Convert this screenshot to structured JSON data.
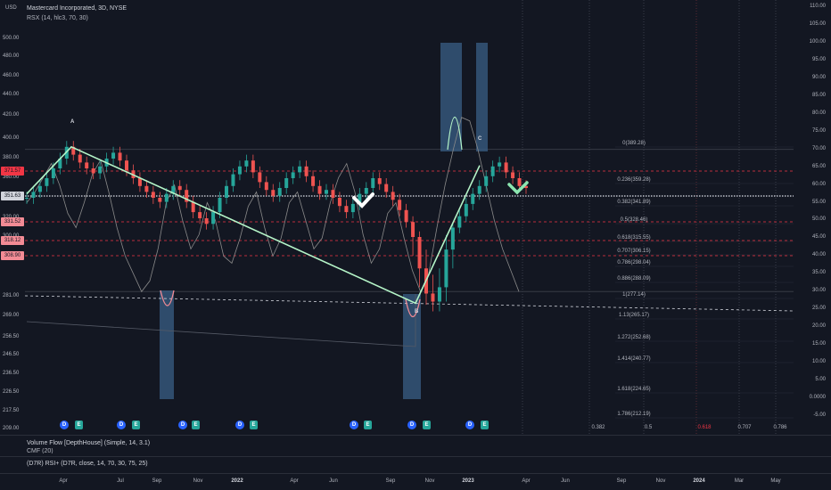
{
  "header": {
    "title": "Mastercard Incorporated, 3D, NYSE",
    "indicator": "RSX (14, hlc3, 70, 30)",
    "currency": "USD"
  },
  "lower_panes": {
    "pane1_label": "Volume Flow [DepthHouse] (Simple, 14, 3.1)",
    "pane1_sublabel": "CMF (20)",
    "pane2_label": "(D7R) RSI+ (D7R, close, 14, 70, 30, 75, 25)"
  },
  "colors": {
    "background": "#131722",
    "wave_line": "#b5f5c8",
    "rsx_line": "#8a8a8a",
    "highlight_box": "#3a5f86",
    "red_level": "#f23645",
    "checkmark": "#ffffff",
    "checkmark_green": "#8ce6b0"
  },
  "price_axis": {
    "ticks": [
      "500.00",
      "480.00",
      "460.00",
      "440.00",
      "420.00",
      "400.00",
      "380.00",
      "360.00",
      "340.00",
      "320.00",
      "300.00",
      "281.00",
      "269.00",
      "256.50",
      "246.50",
      "236.50",
      "226.50",
      "217.50",
      "209.00"
    ]
  },
  "price_badges": [
    {
      "label": "371.57",
      "color": "#f23645"
    },
    {
      "label": "351.63",
      "color": "#d1d4dc"
    },
    {
      "label": "331.52",
      "color": "#f28b95"
    },
    {
      "label": "318.12",
      "color": "#f28b95"
    },
    {
      "label": "308.90",
      "color": "#f28b95"
    }
  ],
  "rsi_axis": {
    "ticks": [
      "110.00",
      "105.00",
      "100.00",
      "95.00",
      "90.00",
      "85.00",
      "80.00",
      "75.00",
      "70.00",
      "65.00",
      "60.00",
      "55.00",
      "50.00",
      "45.00",
      "40.00",
      "35.00",
      "30.00",
      "25.00",
      "20.00",
      "15.00",
      "10.00",
      "5.00",
      "0.0000",
      "-5.00"
    ]
  },
  "time_axis": {
    "ticks": [
      {
        "label": "Apr",
        "bold": false
      },
      {
        "label": "Jul",
        "bold": false
      },
      {
        "label": "Sep",
        "bold": false
      },
      {
        "label": "Nov",
        "bold": false
      },
      {
        "label": "2022",
        "bold": true
      },
      {
        "label": "Apr",
        "bold": false
      },
      {
        "label": "Jun",
        "bold": false
      },
      {
        "label": "Sep",
        "bold": false
      },
      {
        "label": "Nov",
        "bold": false
      },
      {
        "label": "2023",
        "bold": true
      },
      {
        "label": "Apr",
        "bold": false
      },
      {
        "label": "Jun",
        "bold": false
      },
      {
        "label": "Sep",
        "bold": false
      },
      {
        "label": "Nov",
        "bold": false
      },
      {
        "label": "2024",
        "bold": true
      },
      {
        "label": "Mar",
        "bold": false
      },
      {
        "label": "May",
        "bold": false
      }
    ]
  },
  "wave_labels": {
    "a": "A",
    "b": "B",
    "c": "C"
  },
  "fib_levels": [
    {
      "label": "0(389.28)"
    },
    {
      "label": "0.236(359.28)"
    },
    {
      "label": "0.382(341.89)"
    },
    {
      "label": "0.5(328.46)"
    },
    {
      "label": "0.618(315.55)"
    },
    {
      "label": "0.707(306.15)"
    },
    {
      "label": "0.786(298.04)"
    },
    {
      "label": "0.886(288.09)"
    },
    {
      "label": "1(277.14)"
    },
    {
      "label": "1.13(265.17)"
    },
    {
      "label": "1.272(252.68)"
    },
    {
      "label": "1.414(240.77)"
    },
    {
      "label": "1.618(224.65)"
    },
    {
      "label": "1.786(212.19)"
    }
  ],
  "fib_time_labels": [
    {
      "label": "0.382",
      "color": "#b2b5be"
    },
    {
      "label": "0.5",
      "color": "#b2b5be"
    },
    {
      "label": "0.618",
      "color": "#f23645"
    },
    {
      "label": "0.707",
      "color": "#b2b5be"
    },
    {
      "label": "0.786",
      "color": "#b2b5be"
    }
  ],
  "events": [
    "D",
    "E",
    "D",
    "E",
    "D",
    "E",
    "D",
    "E",
    "D",
    "E",
    "D",
    "E",
    "D",
    "E"
  ],
  "chart_data": {
    "type": "line",
    "title": "Mastercard Incorporated, 3D, NYSE",
    "xlabel": "",
    "ylabel": "",
    "ylim": [
      209,
      510
    ],
    "wave_points": [
      {
        "label": "",
        "price": 344
      },
      {
        "label": "A",
        "price": 392
      },
      {
        "label": "B",
        "price": 277
      },
      {
        "label": "C",
        "price": 373
      }
    ],
    "series": [
      {
        "values": [
          340,
          346,
          352,
          360,
          370,
          380,
          392,
          384,
          376,
          370,
          365,
          372,
          380,
          386,
          378,
          368,
          360,
          352,
          346,
          340,
          336,
          344,
          352,
          348,
          336,
          326,
          320,
          314,
          326,
          340,
          352,
          364,
          372,
          378,
          366,
          356,
          348,
          342,
          350,
          360,
          366,
          372,
          362,
          352,
          344,
          348,
          340,
          332,
          326,
          334,
          344,
          350,
          360,
          354,
          346,
          338,
          328,
          316,
          300,
          290,
          282,
          278,
          284,
          296,
          310,
          322,
          334,
          344,
          352,
          362,
          372,
          376,
          366,
          360,
          352,
          350
        ]
      }
    ]
  }
}
